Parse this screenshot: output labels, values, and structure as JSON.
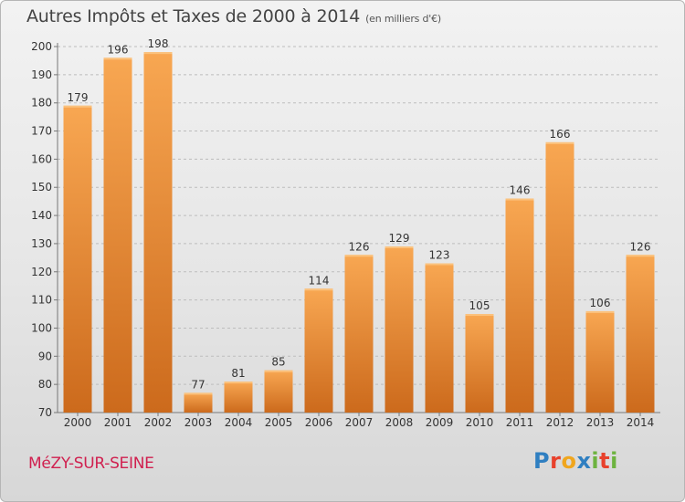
{
  "title": "Autres Impôts et Taxes de 2000 à 2014",
  "title_unit": "(en milliers d'€)",
  "city": "MéZY-SUR-SEINE",
  "logo": {
    "letters": [
      "P",
      "r",
      "o",
      "x",
      "i",
      "t",
      "i"
    ],
    "colors": [
      "#2f7fc1",
      "#e8412c",
      "#f0a61e",
      "#2f7fc1",
      "#6db33f",
      "#e8412c",
      "#6db33f"
    ]
  },
  "colors": {
    "bar_top": "#f8a752",
    "bar_bottom": "#cc6a1c",
    "title_text": "#444444",
    "city_text": "#d0204f"
  },
  "chart_data": {
    "type": "bar",
    "categories": [
      "2000",
      "2001",
      "2002",
      "2003",
      "2004",
      "2005",
      "2006",
      "2007",
      "2008",
      "2009",
      "2010",
      "2011",
      "2012",
      "2013",
      "2014"
    ],
    "values": [
      179,
      196,
      198,
      77,
      81,
      85,
      114,
      126,
      129,
      123,
      105,
      146,
      166,
      106,
      126
    ],
    "ylim": [
      70,
      200
    ],
    "yticks": [
      70,
      80,
      90,
      100,
      110,
      120,
      130,
      140,
      150,
      160,
      170,
      180,
      190,
      200
    ],
    "grid": "horizontal dashed",
    "data_labels": true
  }
}
